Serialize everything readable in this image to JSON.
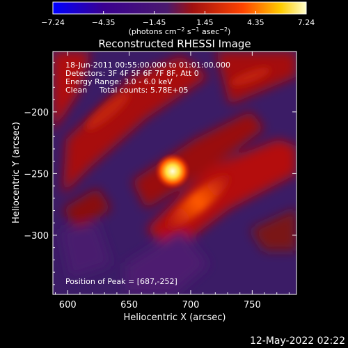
{
  "chart_data": {
    "type": "heatmap",
    "title": "Reconstructed RHESSI Image",
    "xlabel": "Heliocentric X (arcsec)",
    "ylabel": "Heliocentric Y (arcsec)",
    "xlim": [
      588,
      786
    ],
    "ylim": [
      -348,
      -151
    ],
    "x_ticks": [
      "600",
      "650",
      "700",
      "750"
    ],
    "x_tick_values": [
      600,
      650,
      700,
      750
    ],
    "y_ticks": [
      "−200",
      "−250",
      "−300"
    ],
    "y_tick_values": [
      -200,
      -250,
      -300
    ],
    "colorbar": {
      "label_text": "(photons cm",
      "label_sup1": "−2",
      "label_mid": " s",
      "label_sup2": "−1",
      "label_end": " asec",
      "label_sup3": "−2",
      "label_close": ")",
      "range": [
        -7.24,
        7.24
      ],
      "tick_labels": [
        "−7.24",
        "−4.35",
        "−1.45",
        "1.45",
        "4.35",
        "7.24"
      ],
      "tick_values": [
        -7.24,
        -4.35,
        -1.45,
        1.45,
        4.35,
        7.24
      ],
      "colors": [
        "#0000ff",
        "#3a0090",
        "#4a1a6e",
        "#a01010",
        "#ff4400",
        "#ffcc00",
        "#ffffcc"
      ]
    },
    "annotations": [
      "18-Jun-2011 00:55:00.000 to 01:01:00.000",
      "Detectors: 3F 4F 5F 6F 7F 8F, Att 0",
      "Energy Range: 3.0 - 6.0 keV",
      "Clean     Total counts: 5.78E+05"
    ],
    "peak_label": "Position of Peak = [687,-252]",
    "peak": [
      687,
      -252
    ],
    "peak_value": 7.24
  },
  "footer_date": "12-May-2022 02:22"
}
